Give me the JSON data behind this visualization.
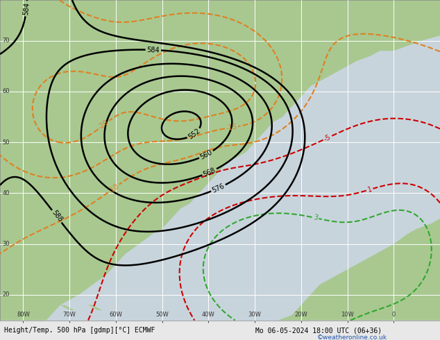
{
  "title_left": "Height/Temp. 500 hPa [gdmp][°C] ECMWF",
  "title_right": "Mo 06-05-2024 18:00 UTC (06+36)",
  "watermark": "©weatheronline.co.uk",
  "background_ocean": "#c8d4dc",
  "background_land_green": "#a8c890",
  "grid_color": "#ffffff",
  "contour_z500_color": "#000000",
  "contour_temp_orange_color": "#e08020",
  "contour_temp_red_color": "#cc0000",
  "contour_temp_green_color": "#30a830",
  "figsize": [
    6.34,
    4.9
  ],
  "dpi": 100,
  "xlim": [
    -85,
    10
  ],
  "ylim": [
    15,
    78
  ],
  "xticks": [
    -80,
    -70,
    -60,
    -50,
    -40,
    -30,
    -20,
    -10,
    0
  ],
  "yticks": [
    20,
    30,
    40,
    50,
    60,
    70
  ]
}
